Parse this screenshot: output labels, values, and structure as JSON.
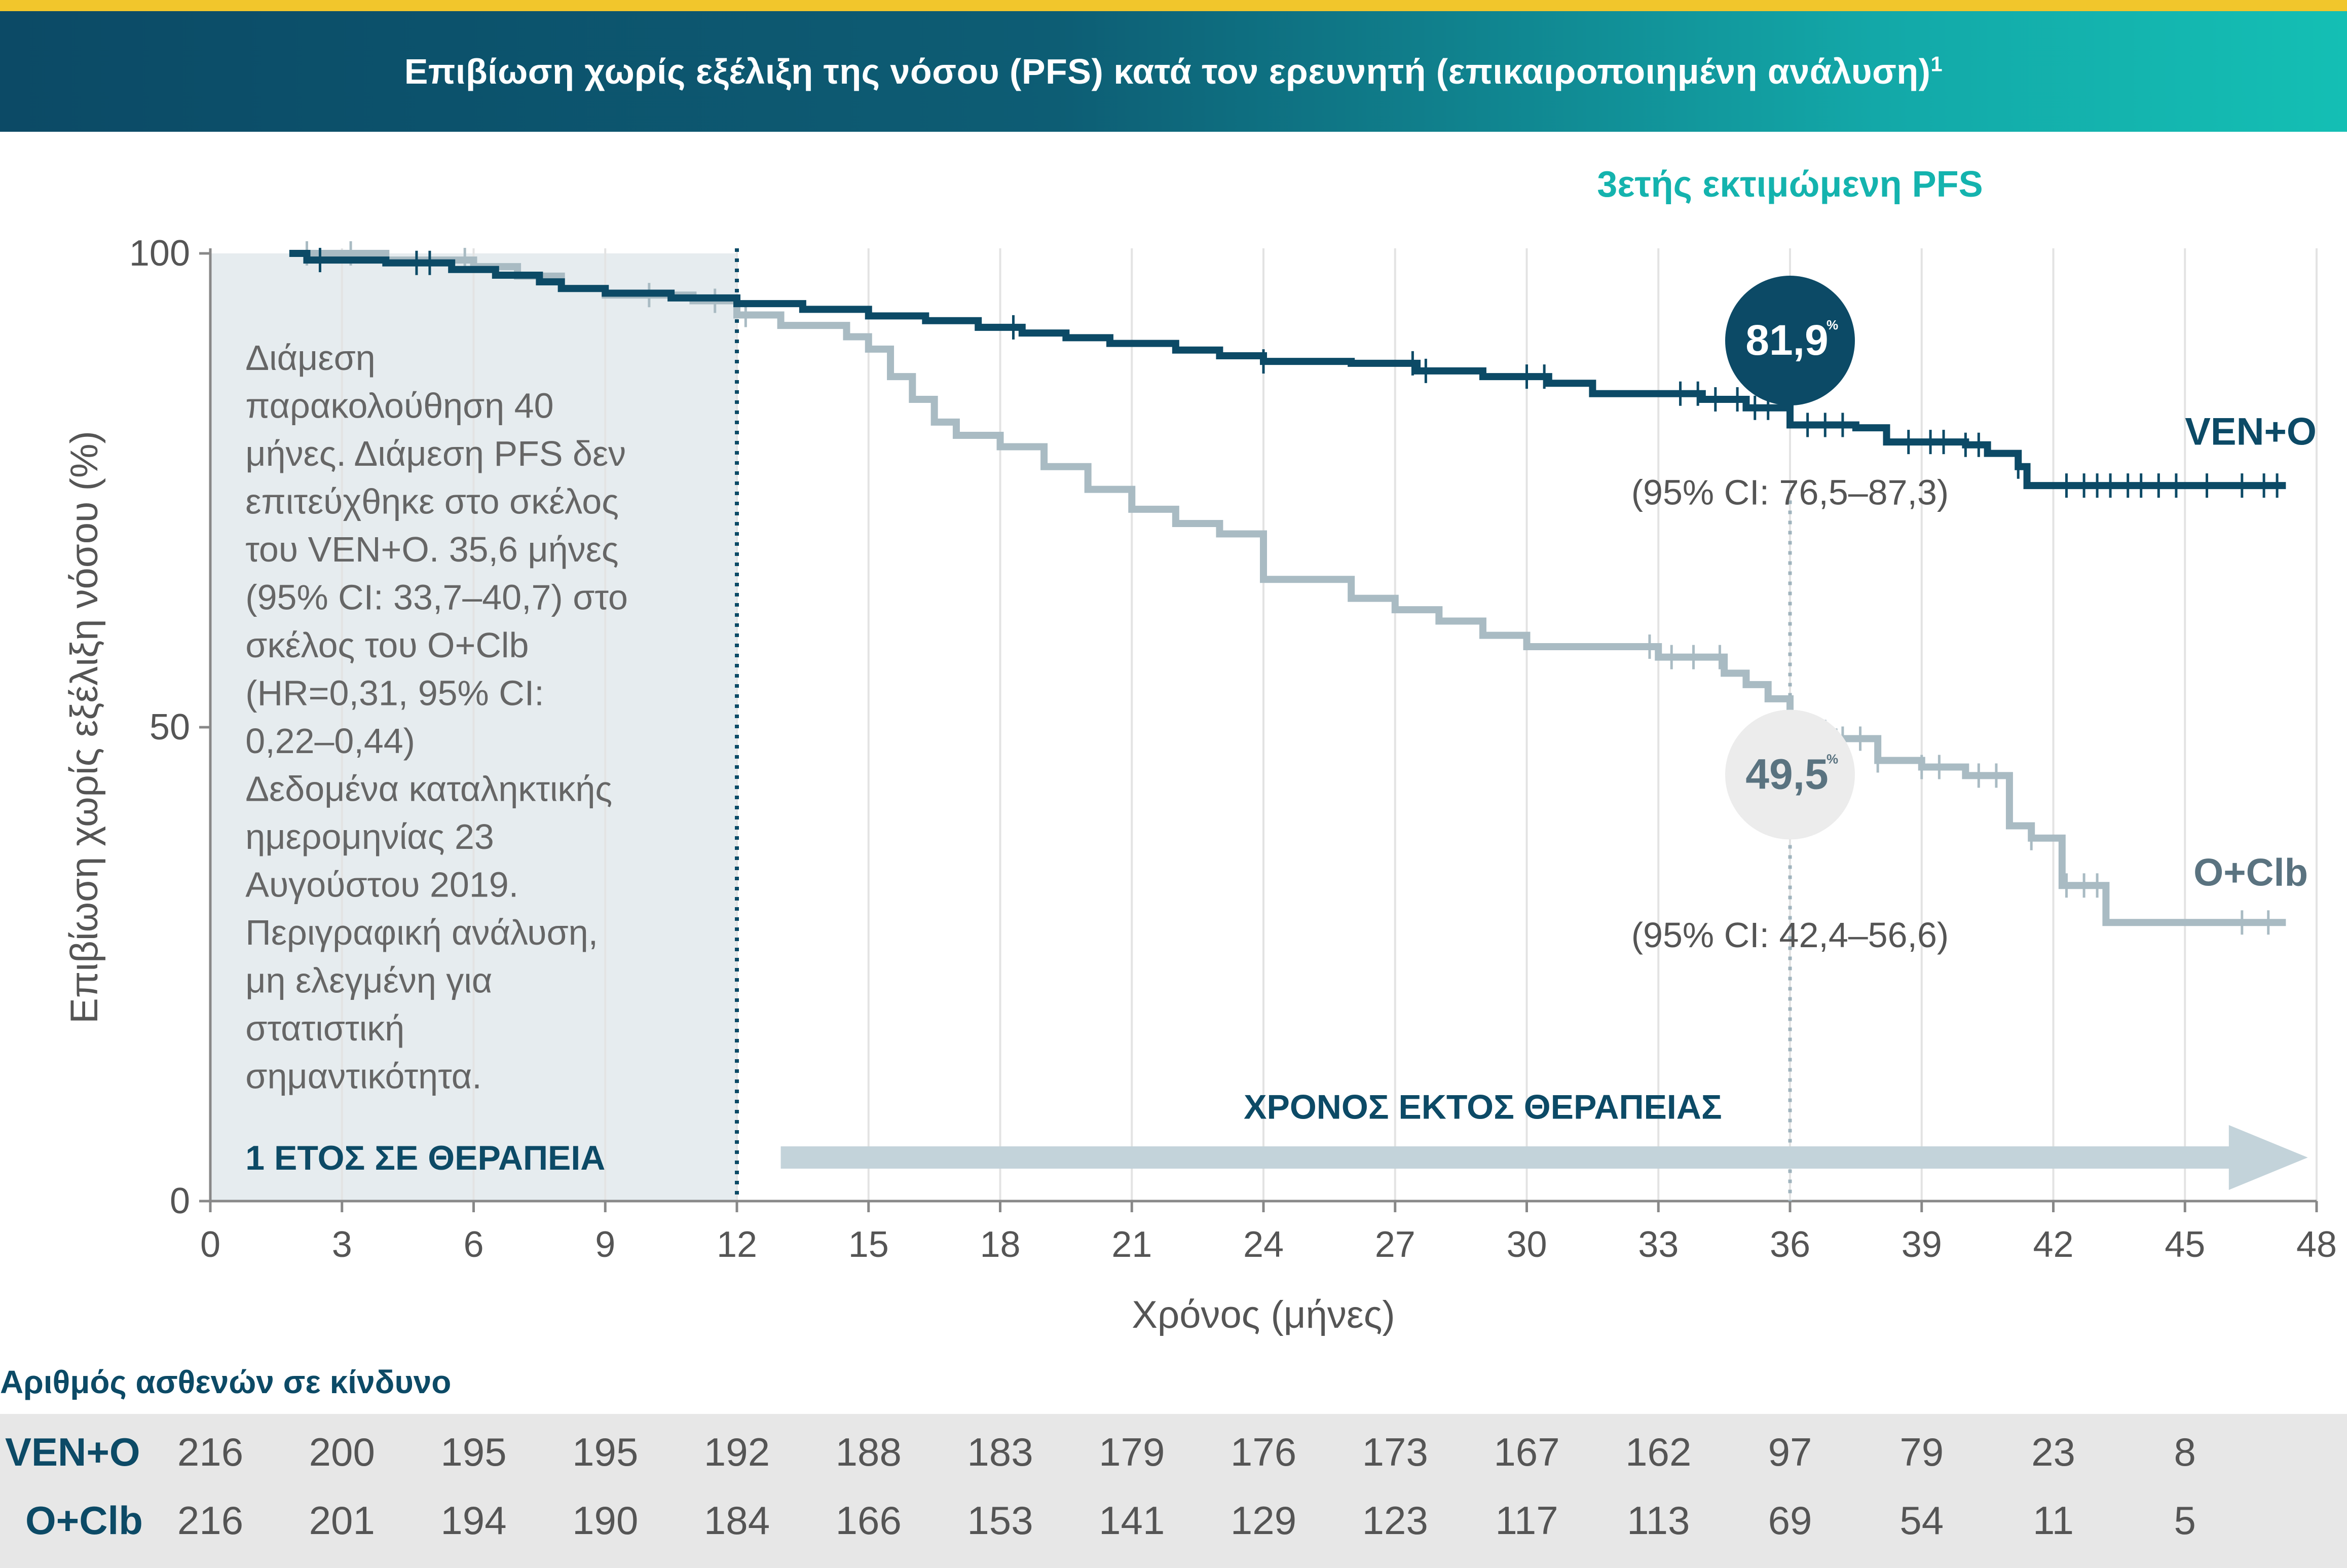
{
  "header": {
    "title": "Επιβίωση χωρίς εξέλιξη της νόσου (PFS) κατά τον ερευνητή (επικαιροποιημένη ανάλυση)",
    "footnote": "1"
  },
  "colors": {
    "ven_o": "#0c4a66",
    "o_clb": "#a9bbc3",
    "accent_teal": "#14b3ae",
    "shaded_band": "#e6ecef",
    "arrow": "#c3d3da"
  },
  "chart_data": {
    "type": "line",
    "title": "Επιβίωση χωρίς εξέλιξη της νόσου (PFS) κατά τον ερευνητή (επικαιροποιημένη ανάλυση)",
    "xlabel": "Χρόνος (μήνες)",
    "ylabel": "Επιβίωση χωρίς εξέλιξη νόσου (%)",
    "xlim": [
      0,
      48
    ],
    "ylim": [
      0,
      100
    ],
    "x_ticks": [
      0,
      3,
      6,
      9,
      12,
      15,
      18,
      21,
      24,
      27,
      30,
      33,
      36,
      39,
      42,
      45,
      48
    ],
    "y_ticks": [
      0,
      50,
      100
    ],
    "grid": "vertical",
    "series": [
      {
        "name": "VEN+O",
        "step_points": [
          [
            1.8,
            100
          ],
          [
            2.2,
            99.3
          ],
          [
            4,
            99
          ],
          [
            5.5,
            98.3
          ],
          [
            6.5,
            97.7
          ],
          [
            7.5,
            97
          ],
          [
            8,
            96.3
          ],
          [
            9,
            95.8
          ],
          [
            10.5,
            95.3
          ],
          [
            12,
            94.7
          ],
          [
            13.5,
            94.1
          ],
          [
            15,
            93.4
          ],
          [
            16.3,
            92.9
          ],
          [
            17.5,
            92.2
          ],
          [
            18.5,
            91.6
          ],
          [
            19.5,
            91.1
          ],
          [
            20.5,
            90.5
          ],
          [
            22,
            89.8
          ],
          [
            23,
            89.2
          ],
          [
            24,
            88.6
          ],
          [
            26,
            88.4
          ],
          [
            27.5,
            87.6
          ],
          [
            29,
            87
          ],
          [
            30.5,
            86.3
          ],
          [
            31.5,
            85.2
          ],
          [
            34,
            84.6
          ],
          [
            35,
            83.7
          ],
          [
            36,
            81.9
          ],
          [
            37.5,
            81.6
          ],
          [
            38.2,
            80.1
          ],
          [
            40,
            79.8
          ],
          [
            40.5,
            78.9
          ],
          [
            41.2,
            77.5
          ],
          [
            41.4,
            75.5
          ],
          [
            47.3,
            75.5
          ]
        ],
        "censor_x": [
          2.5,
          4.7,
          5,
          18.3,
          24,
          27.4,
          27.7,
          30,
          30.4,
          33.5,
          33.9,
          34.3,
          34.8,
          35.2,
          35.5,
          36.4,
          36.8,
          37.2,
          38.7,
          39.2,
          39.5,
          40,
          40.3,
          41.2,
          42.3,
          42.7,
          43,
          43.3,
          43.7,
          44,
          44.4,
          44.8,
          45.5,
          46.3,
          46.8,
          47.1
        ]
      },
      {
        "name": "O+Clb",
        "step_points": [
          [
            2,
            100
          ],
          [
            4,
            99.3
          ],
          [
            6,
            98.6
          ],
          [
            7,
            97.6
          ],
          [
            8,
            96.3
          ],
          [
            9,
            95.6
          ],
          [
            11,
            95
          ],
          [
            12,
            93.5
          ],
          [
            13,
            92.4
          ],
          [
            14.5,
            91.2
          ],
          [
            15,
            89.9
          ],
          [
            15.5,
            87
          ],
          [
            16,
            84.6
          ],
          [
            16.5,
            82.2
          ],
          [
            17,
            80.8
          ],
          [
            18,
            79.6
          ],
          [
            19,
            77.5
          ],
          [
            20,
            75.1
          ],
          [
            21,
            73
          ],
          [
            22,
            71.5
          ],
          [
            23,
            70.4
          ],
          [
            24,
            65.6
          ],
          [
            26,
            63.6
          ],
          [
            27,
            62.4
          ],
          [
            28,
            61.2
          ],
          [
            29,
            59.7
          ],
          [
            30,
            58.5
          ],
          [
            33,
            57.4
          ],
          [
            34.5,
            55.7
          ],
          [
            35,
            54.5
          ],
          [
            35.5,
            53
          ],
          [
            36,
            49.5
          ],
          [
            37,
            48.8
          ],
          [
            38,
            46.5
          ],
          [
            39,
            45.8
          ],
          [
            40,
            44.9
          ],
          [
            41,
            39.6
          ],
          [
            41.5,
            38.3
          ],
          [
            42.2,
            33.3
          ],
          [
            43.2,
            29.4
          ],
          [
            47.3,
            29.4
          ]
        ],
        "censor_x": [
          2.2,
          3.2,
          5.8,
          10,
          11.5,
          12.2,
          32.8,
          33.3,
          33.8,
          34.4,
          36.8,
          37.2,
          37.6,
          38,
          39,
          39.4,
          40.3,
          40.7,
          41.5,
          42.3,
          42.7,
          43,
          46.3,
          46.9
        ]
      }
    ],
    "reference_line_x": 36,
    "treatment_end_x": 12,
    "annotations": {
      "landmark_title": "3ετής εκτιμώμενη PFS",
      "ven_o_value": "81,9",
      "ven_o_value_num": 81.9,
      "ven_o_ci": "(95% CI: 76,5–87,3)",
      "o_clb_value": "49,5",
      "o_clb_value_num": 49.5,
      "o_clb_ci": "(95% CI: 42,4–56,6)",
      "percent_sign": "%",
      "ven_o_label": "VEN+O",
      "o_clb_label": "O+Clb",
      "shaded_label": "1 ΕΤΟΣ ΣΕ ΘΕΡΑΠΕΙΑ",
      "arrow_label": "ΧΡΟΝΟΣ ΕΚΤΟΣ ΘΕΡΑΠΕΙΑΣ",
      "note_lines": [
        "Διάμεση",
        "παρακολούθηση 40",
        "μήνες. Διάμεση PFS δεν",
        "επιτεύχθηκε στο σκέλος",
        "του VEN+O. 35,6 μήνες",
        "(95% CI: 33,7–40,7) στο",
        "σκέλος του O+Clb",
        "(HR=0,31, 95% CI:",
        "0,22–0,44)",
        "Δεδομένα καταληκτικής",
        "ημερομηνίας 23",
        "Αυγούστου 2019.",
        "Περιγραφική ανάλυση,",
        "μη ελεγμένη για",
        "στατιστική",
        "σημαντικότητα."
      ]
    }
  },
  "risk_table": {
    "title": "Αριθμός ασθενών σε κίνδυνο",
    "rows": [
      {
        "label": "VEN+O",
        "values": [
          "216",
          "200",
          "195",
          "195",
          "192",
          "188",
          "183",
          "179",
          "176",
          "173",
          "167",
          "162",
          "97",
          "79",
          "23",
          "8"
        ]
      },
      {
        "label": "O+Clb",
        "values": [
          "216",
          "201",
          "194",
          "190",
          "184",
          "166",
          "153",
          "141",
          "129",
          "123",
          "117",
          "113",
          "69",
          "54",
          "11",
          "5"
        ]
      }
    ]
  }
}
